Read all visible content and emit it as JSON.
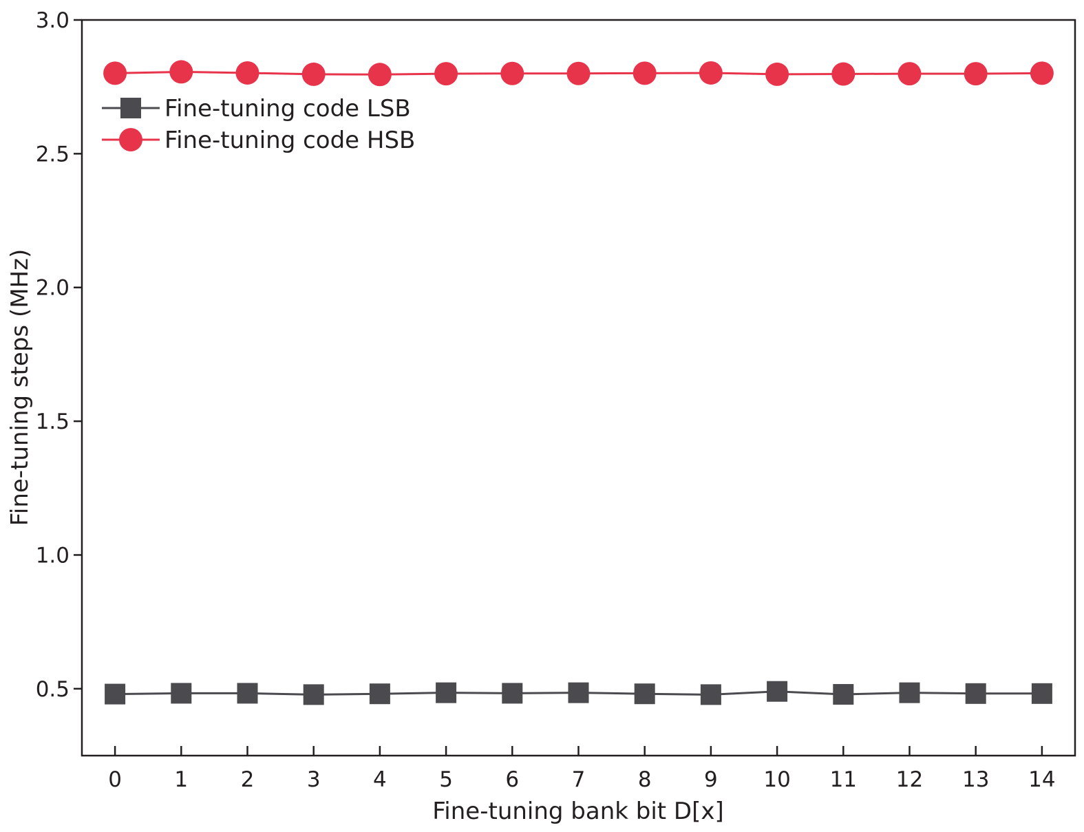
{
  "chart_data": {
    "type": "line",
    "title": "",
    "xlabel": "Fine-tuning bank bit D[x]",
    "ylabel": "Fine-tuning steps (MHz)",
    "x": [
      0,
      1,
      2,
      3,
      4,
      5,
      6,
      7,
      8,
      9,
      10,
      11,
      12,
      13,
      14
    ],
    "x_tick_labels": [
      "0",
      "1",
      "2",
      "3",
      "4",
      "5",
      "6",
      "7",
      "8",
      "9",
      "10",
      "11",
      "12",
      "13",
      "14"
    ],
    "xlim": [
      -0.5,
      14.5
    ],
    "ylim": [
      0.25,
      3.0
    ],
    "y_ticks": [
      0.5,
      1.0,
      1.5,
      2.0,
      2.5,
      3.0
    ],
    "y_tick_labels": [
      "0.5",
      "1.0",
      "1.5",
      "2.0",
      "2.5",
      "3.0"
    ],
    "grid": false,
    "legend_position": "top-left",
    "series": [
      {
        "name": "Fine-tuning code LSB",
        "marker": "square",
        "color": "#4a4a4f",
        "values": [
          0.48,
          0.483,
          0.483,
          0.478,
          0.481,
          0.485,
          0.483,
          0.485,
          0.481,
          0.478,
          0.49,
          0.479,
          0.485,
          0.482,
          0.482
        ]
      },
      {
        "name": "Fine-tuning code HSB",
        "marker": "circle",
        "color": "#e8344a",
        "values": [
          2.801,
          2.806,
          2.802,
          2.797,
          2.796,
          2.799,
          2.8,
          2.8,
          2.801,
          2.802,
          2.797,
          2.798,
          2.799,
          2.799,
          2.801
        ]
      }
    ]
  }
}
